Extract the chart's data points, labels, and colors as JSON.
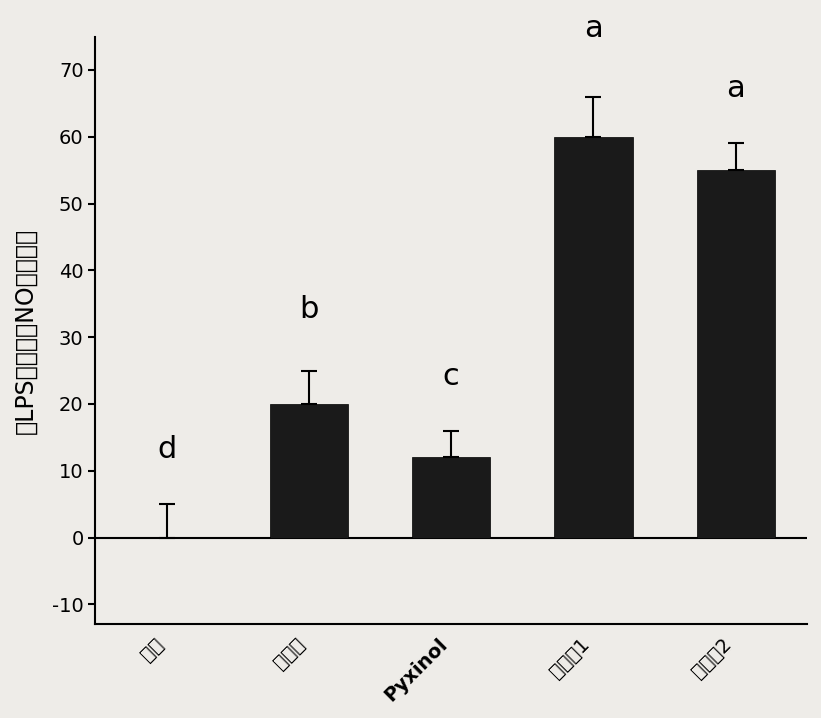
{
  "categories": [
    "对照",
    "阳性药",
    "Pyxinol",
    "化合瀁1",
    "化合瀁2"
  ],
  "values": [
    0,
    20,
    12,
    60,
    55
  ],
  "errors": [
    5,
    5,
    4,
    6,
    4
  ],
  "bar_color": "#1a1a1a",
  "ylabel": "对LPS诱导产生NO的抑制率",
  "ylim": [
    -13,
    75
  ],
  "yticks": [
    -10,
    0,
    10,
    20,
    30,
    40,
    50,
    60,
    70
  ],
  "letters": [
    "d",
    "b",
    "c",
    "a",
    "a"
  ],
  "letter_offsets": [
    6,
    7,
    6,
    8,
    6
  ],
  "background_color": "#eeece8",
  "bar_width": 0.55,
  "letter_fontsize": 22,
  "tick_fontsize": 14,
  "ylabel_fontsize": 17
}
